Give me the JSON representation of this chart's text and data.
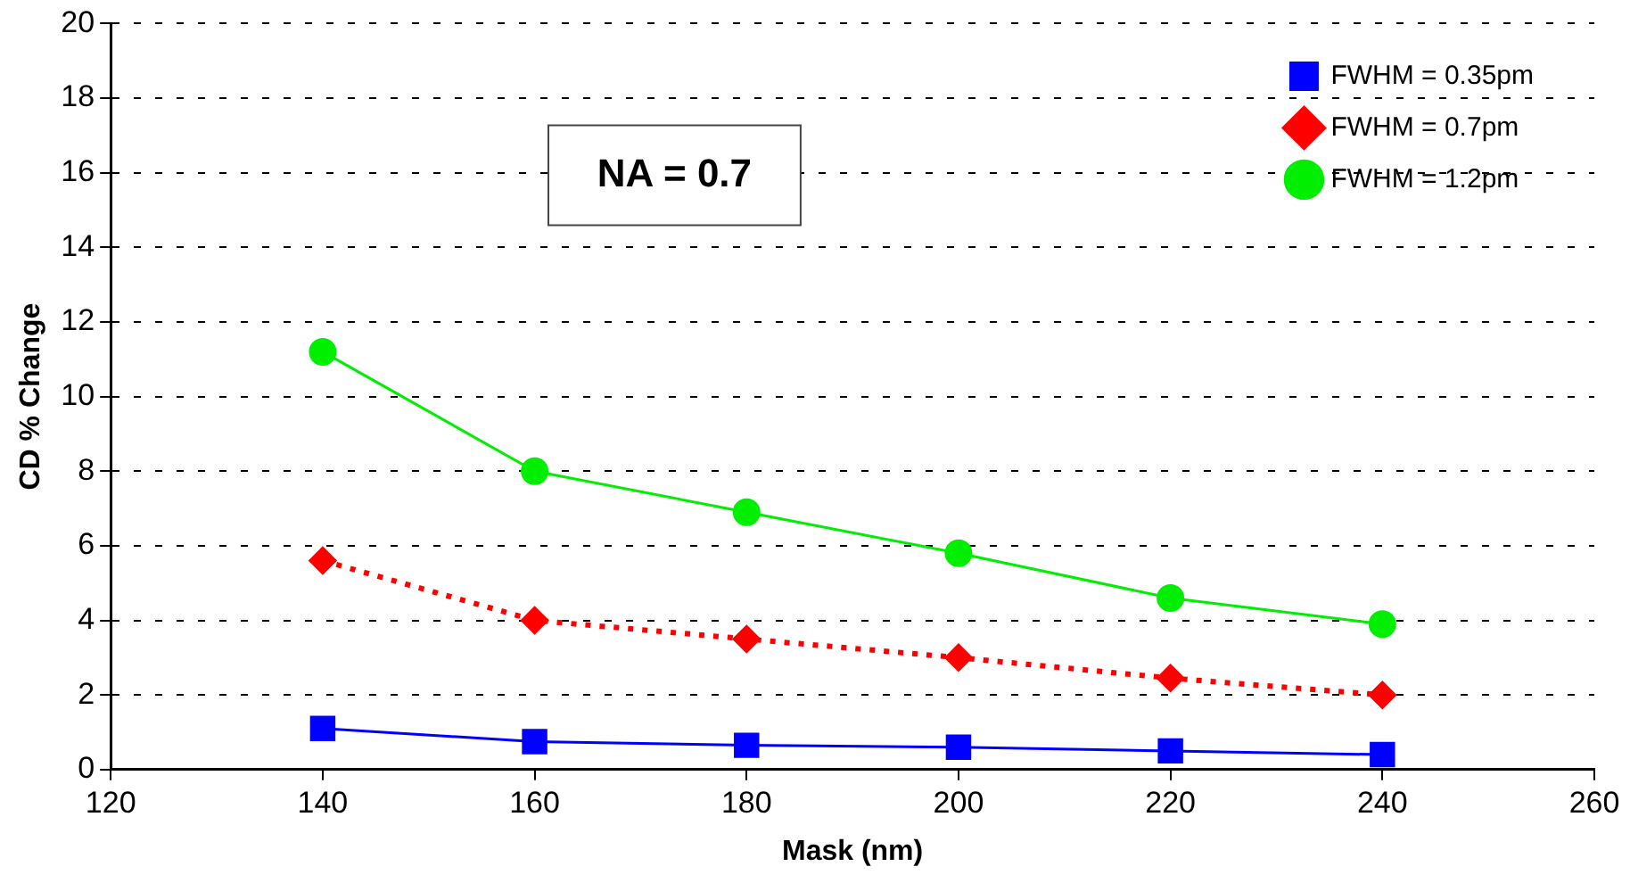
{
  "chart_data": {
    "type": "line",
    "xlabel": "Mask (nm)",
    "ylabel": "CD % Change",
    "x": [
      140,
      160,
      180,
      200,
      220,
      240
    ],
    "series": [
      {
        "name": "FWHM = 0.35pm",
        "color": "#0000ff",
        "marker": "square",
        "line_style": "solid",
        "values": [
          1.1,
          0.75,
          0.65,
          0.6,
          0.5,
          0.4
        ]
      },
      {
        "name": "FWHM = 0.7pm",
        "color": "#ff0000",
        "marker": "diamond",
        "line_style": "dotted",
        "values": [
          5.6,
          4.0,
          3.5,
          3.0,
          2.45,
          2.0
        ]
      },
      {
        "name": "FWHM = 1.2pm",
        "color": "#00ee00",
        "marker": "circle",
        "line_style": "solid",
        "values": [
          11.2,
          8.0,
          6.9,
          5.8,
          4.6,
          3.9
        ]
      }
    ],
    "xlim": [
      120,
      260
    ],
    "xticks": [
      120,
      140,
      160,
      180,
      200,
      220,
      240,
      260
    ],
    "ylim": [
      0,
      20
    ],
    "yticks": [
      0,
      2,
      4,
      6,
      8,
      10,
      12,
      14,
      16,
      18,
      20
    ],
    "grid": "y",
    "legend": "top right",
    "annotations": [
      "NA = 0.7"
    ]
  }
}
